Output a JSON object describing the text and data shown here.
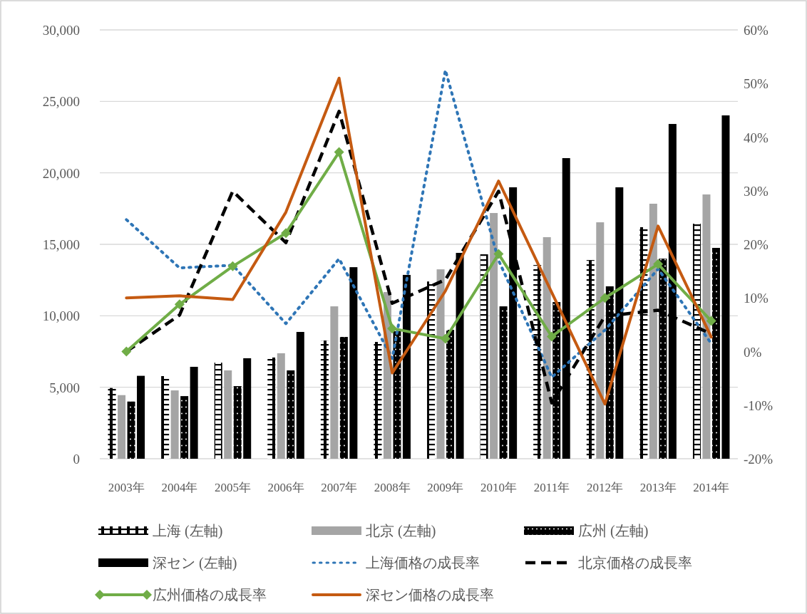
{
  "chart_data": {
    "type": "bar",
    "categories": [
      "2003年",
      "2004年",
      "2005年",
      "2006年",
      "2007年",
      "2008年",
      "2009年",
      "2010年",
      "2011年",
      "2012年",
      "2013年",
      "2014年"
    ],
    "ylim": [
      0,
      30000
    ],
    "yticks": [
      {
        "value": 0,
        "label": "0"
      },
      {
        "value": 5000,
        "label": "5,000"
      },
      {
        "value": 10000,
        "label": "10,000"
      },
      {
        "value": 15000,
        "label": "15,000"
      },
      {
        "value": 20000,
        "label": "20,000"
      },
      {
        "value": 25000,
        "label": "25,000"
      },
      {
        "value": 30000,
        "label": "30,000"
      }
    ],
    "y2lim": [
      -20,
      60
    ],
    "y2ticks": [
      {
        "value": -20,
        "label": "-20%"
      },
      {
        "value": -10,
        "label": "-10%"
      },
      {
        "value": 0,
        "label": "0%"
      },
      {
        "value": 10,
        "label": "10%"
      },
      {
        "value": 20,
        "label": "20%"
      },
      {
        "value": 30,
        "label": "30%"
      },
      {
        "value": 40,
        "label": "40%"
      },
      {
        "value": 50,
        "label": "50%"
      },
      {
        "value": 60,
        "label": "60%"
      }
    ],
    "grid": "y",
    "legend": "bottom",
    "series": [
      {
        "name": "上海 (左軸)",
        "color": "#000000",
        "values": [
          4950,
          5780,
          6720,
          7080,
          8270,
          8170,
          12400,
          14300,
          13550,
          13900,
          16200,
          16440
        ]
      },
      {
        "name": "北京 (左軸)",
        "color": "#a5a5a5",
        "values": [
          4450,
          4780,
          6180,
          7380,
          10660,
          11660,
          13250,
          17190,
          15500,
          16540,
          17840,
          18490
        ]
      },
      {
        "name": "広州 (左軸)",
        "color": "#000000",
        "values": [
          4000,
          4380,
          5080,
          6180,
          8520,
          8920,
          9020,
          10660,
          10960,
          12060,
          14000,
          14750
        ]
      },
      {
        "name": "深セン (左軸)",
        "color": "#000000",
        "values": [
          5800,
          6430,
          7030,
          8870,
          13400,
          12860,
          14400,
          18990,
          21030,
          18990,
          23420,
          24020
        ]
      },
      {
        "name": "上海価格の成長率",
        "type": "line",
        "axis": "y2",
        "color": "#2e75b6",
        "line_style": "dotted",
        "marker": "none",
        "values": [
          24.6,
          15.6,
          16.1,
          5.2,
          17.3,
          -1.3,
          52.5,
          17.0,
          -4.8,
          4.0,
          15.4,
          1.5
        ]
      },
      {
        "name": "北京価格の成長率",
        "type": "line",
        "axis": "y2",
        "color": "#000000",
        "line_style": "dashed",
        "marker": "none",
        "values": [
          0,
          6.8,
          29.9,
          20.3,
          44.8,
          9.0,
          13.4,
          29.9,
          -9.6,
          6.6,
          7.7,
          3.3
        ]
      },
      {
        "name": "広州価格の成長率",
        "type": "line",
        "axis": "y2",
        "color": "#70ad47",
        "line_style": "solid",
        "marker": "diamond",
        "values": [
          0,
          8.8,
          15.9,
          22.1,
          37.2,
          4.3,
          2.4,
          18.2,
          2.8,
          10.0,
          16.3,
          5.7
        ]
      },
      {
        "name": "深セン価格の成長率",
        "type": "line",
        "axis": "y2",
        "color": "#c55a11",
        "line_style": "solid",
        "marker": "none",
        "values": [
          10.0,
          10.4,
          9.7,
          26.0,
          51.0,
          -4.0,
          11.3,
          31.8,
          11.0,
          -9.8,
          23.4,
          2.7
        ]
      }
    ]
  }
}
